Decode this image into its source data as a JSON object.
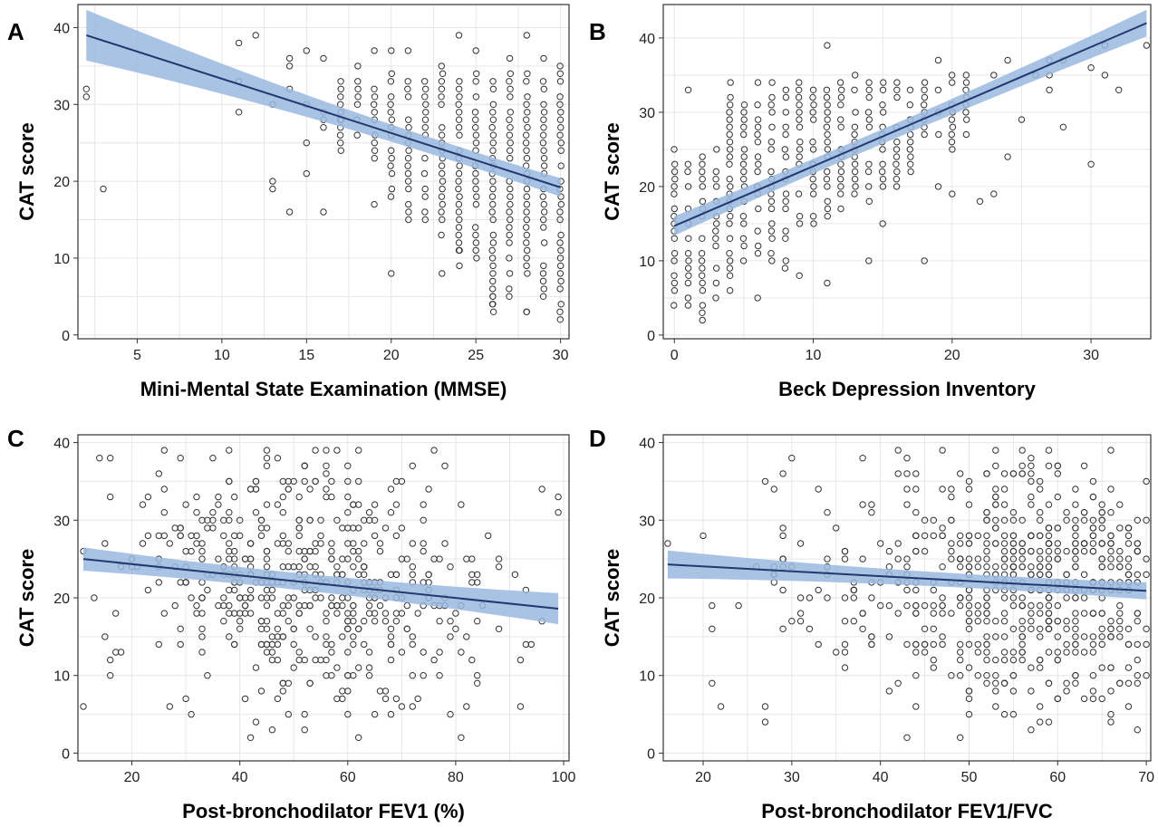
{
  "chart_data": [
    {
      "type": "scatter",
      "panel_label": "A",
      "xlabel": "Mini-Mental State Examination (MMSE)",
      "ylabel": "CAT score",
      "xlim": [
        1.5,
        30.5
      ],
      "ylim": [
        -0.5,
        43
      ],
      "xticks": [
        5,
        10,
        15,
        20,
        25,
        30
      ],
      "yticks": [
        0,
        10,
        20,
        30,
        40
      ],
      "grid": true,
      "regression": {
        "x": [
          2,
          30
        ],
        "y": [
          39,
          19.2
        ],
        "ci_half_width": [
          3.3,
          1.2
        ],
        "color": "#1f3a6e",
        "band_color": "#9ab8e0"
      },
      "points": {
        "ranges": [
          {
            "x": 30,
            "y0": 2,
            "y1": 35
          },
          {
            "x": 29,
            "y0": 3,
            "y1": 33
          },
          {
            "x": 28,
            "y0": 3,
            "y1": 34
          },
          {
            "x": 27,
            "y0": 5,
            "y1": 34
          },
          {
            "x": 26,
            "y0": 3,
            "y1": 34
          },
          {
            "x": 25,
            "y0": 10,
            "y1": 34
          },
          {
            "x": 24,
            "y0": 9,
            "y1": 33
          },
          {
            "x": 23,
            "y0": 13,
            "y1": 35
          },
          {
            "x": 22,
            "y0": 15,
            "y1": 33
          },
          {
            "x": 21,
            "y0": 15,
            "y1": 33
          },
          {
            "x": 20,
            "y0": 18,
            "y1": 34
          },
          {
            "x": 19,
            "y0": 22,
            "y1": 32
          },
          {
            "x": 18,
            "y0": 26,
            "y1": 35
          },
          {
            "x": 17,
            "y0": 24,
            "y1": 33
          }
        ],
        "extra": [
          [
            2,
            32
          ],
          [
            2,
            31
          ],
          [
            3,
            19
          ],
          [
            11,
            38
          ],
          [
            11,
            33
          ],
          [
            11,
            29
          ],
          [
            12,
            39
          ],
          [
            13,
            30
          ],
          [
            13,
            20
          ],
          [
            13,
            19
          ],
          [
            14,
            36
          ],
          [
            14,
            35
          ],
          [
            14,
            32
          ],
          [
            14,
            16
          ],
          [
            15,
            37
          ],
          [
            15,
            30
          ],
          [
            15,
            25
          ],
          [
            15,
            21
          ],
          [
            16,
            36
          ],
          [
            16,
            29
          ],
          [
            16,
            28
          ],
          [
            16,
            27
          ],
          [
            16,
            16
          ],
          [
            17,
            28
          ],
          [
            17,
            25
          ],
          [
            19,
            37
          ],
          [
            19,
            17
          ],
          [
            20,
            37
          ],
          [
            20,
            8
          ],
          [
            21,
            37
          ],
          [
            23,
            8
          ],
          [
            24,
            39
          ],
          [
            24,
            11
          ],
          [
            25,
            37
          ],
          [
            26,
            5
          ],
          [
            26,
            4
          ],
          [
            27,
            36
          ],
          [
            28,
            39
          ],
          [
            28,
            3
          ],
          [
            29,
            36
          ]
        ],
        "skip": 0.2
      }
    },
    {
      "type": "scatter",
      "panel_label": "B",
      "xlabel": "Beck Depression Inventory",
      "ylabel": "CAT score",
      "xlim": [
        -0.8,
        34.3
      ],
      "ylim": [
        -0.5,
        44.5
      ],
      "xticks": [
        0,
        10,
        20,
        30
      ],
      "yticks": [
        0,
        10,
        20,
        30,
        40
      ],
      "grid": true,
      "regression": {
        "x": [
          0,
          34
        ],
        "y": [
          14.7,
          42
        ],
        "ci_half_width": [
          1.3,
          1.8
        ],
        "color": "#1f3a6e",
        "band_color": "#9ab8e0"
      },
      "points": {
        "ranges": [
          {
            "x": 0,
            "y0": 3,
            "y1": 25
          },
          {
            "x": 1,
            "y0": 3,
            "y1": 23
          },
          {
            "x": 2,
            "y0": 2,
            "y1": 24
          },
          {
            "x": 3,
            "y0": 5,
            "y1": 25
          },
          {
            "x": 4,
            "y0": 6,
            "y1": 34
          },
          {
            "x": 5,
            "y0": 8,
            "y1": 32
          },
          {
            "x": 6,
            "y0": 10,
            "y1": 34
          },
          {
            "x": 7,
            "y0": 10,
            "y1": 34
          },
          {
            "x": 8,
            "y0": 9,
            "y1": 33
          },
          {
            "x": 9,
            "y0": 15,
            "y1": 34
          },
          {
            "x": 10,
            "y0": 15,
            "y1": 33
          },
          {
            "x": 11,
            "y0": 16,
            "y1": 33
          },
          {
            "x": 12,
            "y0": 17,
            "y1": 34
          },
          {
            "x": 13,
            "y0": 19,
            "y1": 36
          },
          {
            "x": 14,
            "y0": 18,
            "y1": 34
          },
          {
            "x": 15,
            "y0": 20,
            "y1": 34
          },
          {
            "x": 16,
            "y0": 20,
            "y1": 34
          },
          {
            "x": 17,
            "y0": 22,
            "y1": 33
          },
          {
            "x": 18,
            "y0": 26,
            "y1": 34
          },
          {
            "x": 19,
            "y0": 27,
            "y1": 33
          },
          {
            "x": 20,
            "y0": 24,
            "y1": 35
          },
          {
            "x": 21,
            "y0": 27,
            "y1": 35
          }
        ],
        "extra": [
          [
            1,
            33
          ],
          [
            6,
            5
          ],
          [
            9,
            8
          ],
          [
            11,
            7
          ],
          [
            11,
            39
          ],
          [
            14,
            10
          ],
          [
            15,
            15
          ],
          [
            18,
            10
          ],
          [
            19,
            37
          ],
          [
            19,
            20
          ],
          [
            20,
            19
          ],
          [
            22,
            18
          ],
          [
            23,
            19
          ],
          [
            23,
            35
          ],
          [
            24,
            24
          ],
          [
            24,
            37
          ],
          [
            25,
            29
          ],
          [
            26,
            35
          ],
          [
            27,
            33
          ],
          [
            27,
            35
          ],
          [
            27,
            37
          ],
          [
            28,
            28
          ],
          [
            28,
            37
          ],
          [
            30,
            23
          ],
          [
            30,
            36
          ],
          [
            31,
            35
          ],
          [
            31,
            39
          ],
          [
            32,
            33
          ],
          [
            34,
            39
          ]
        ],
        "skip": 0.25
      }
    },
    {
      "type": "scatter",
      "panel_label": "C",
      "xlabel": "Post-bronchodilator FEV1 (%)",
      "ylabel": "CAT score",
      "xlim": [
        10,
        101
      ],
      "ylim": [
        -1,
        41
      ],
      "xticks": [
        20,
        40,
        60,
        80,
        100
      ],
      "yticks": [
        0,
        10,
        20,
        30,
        40
      ],
      "grid": true,
      "regression": {
        "x": [
          11,
          99
        ],
        "y": [
          25,
          18.6
        ],
        "ci_half_width": [
          1.5,
          2.0
        ],
        "color": "#1f3a6e",
        "band_color": "#9ab8e0"
      },
      "points": {
        "cloud": {
          "n": 520,
          "x_mean": 52,
          "x_sd": 17,
          "x_min": 11,
          "x_max": 99,
          "y_min": 2,
          "y_max": 39,
          "seed": 3
        },
        "extra": [
          [
            11,
            6
          ],
          [
            15,
            15
          ],
          [
            16,
            33
          ],
          [
            16,
            10
          ],
          [
            27,
            6
          ],
          [
            31,
            5
          ],
          [
            96,
            34
          ],
          [
            99,
            33
          ],
          [
            99,
            31
          ],
          [
            96,
            17
          ],
          [
            92,
            12
          ],
          [
            88,
            16
          ],
          [
            86,
            28
          ],
          [
            82,
            6
          ],
          [
            78,
            37
          ],
          [
            62,
            39
          ],
          [
            54,
            39
          ],
          [
            58,
            39
          ],
          [
            62,
            2
          ],
          [
            42,
            2
          ]
        ]
      }
    },
    {
      "type": "scatter",
      "panel_label": "D",
      "xlabel": "Post-bronchodilator FEV1/FVC",
      "ylabel": "CAT score",
      "xlim": [
        15.5,
        70.5
      ],
      "ylim": [
        -1,
        41
      ],
      "xticks": [
        20,
        30,
        40,
        50,
        60,
        70
      ],
      "yticks": [
        0,
        10,
        20,
        30,
        40
      ],
      "grid": true,
      "regression": {
        "x": [
          16,
          70
        ],
        "y": [
          24.3,
          20.9
        ],
        "ci_half_width": [
          1.8,
          1.1
        ],
        "color": "#1f3a6e",
        "band_color": "#9ab8e0"
      },
      "points": {
        "cloud": {
          "n": 640,
          "x_mean": 60,
          "x_sd": 11,
          "x_min": 28,
          "x_max": 70,
          "y_min": 2,
          "y_max": 39,
          "seed": 7
        },
        "extra": [
          [
            16,
            27
          ],
          [
            20,
            28
          ],
          [
            21,
            19
          ],
          [
            21,
            16
          ],
          [
            21,
            9
          ],
          [
            22,
            6
          ],
          [
            24,
            19
          ],
          [
            26,
            24
          ],
          [
            27,
            35
          ],
          [
            27,
            6
          ],
          [
            27,
            4
          ],
          [
            28,
            34
          ],
          [
            28,
            22
          ],
          [
            29,
            29
          ],
          [
            29,
            28
          ],
          [
            29,
            21
          ]
        ]
      }
    }
  ]
}
